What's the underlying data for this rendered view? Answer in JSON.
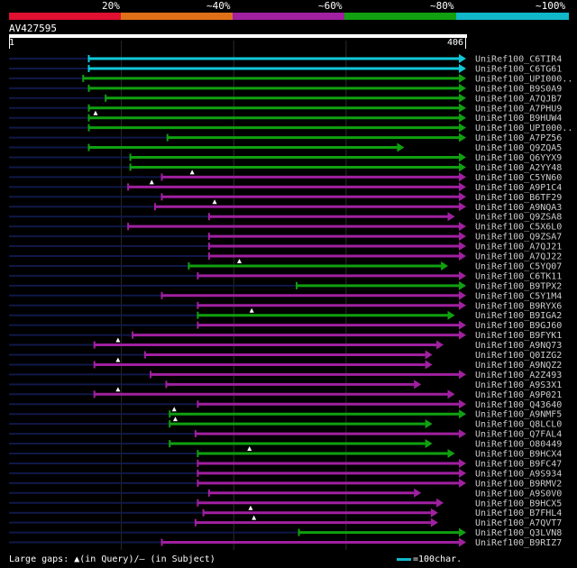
{
  "legend": {
    "segments": [
      {
        "label": "20%",
        "color": "#e01030"
      },
      {
        "label": "~40%",
        "color": "#e07018"
      },
      {
        "label": "~60%",
        "color": "#a020a0"
      },
      {
        "label": "~80%",
        "color": "#10a010"
      },
      {
        "label": "~100%",
        "color": "#10b8c8"
      }
    ]
  },
  "query": {
    "id": "AV427595",
    "start": "1",
    "end": "406"
  },
  "footer": {
    "large_gaps": "Large gaps: ▲(in Query)/– (in Subject)",
    "scale": "=100char."
  },
  "chart_data": {
    "type": "alignment",
    "query_length": 406,
    "identity_colors": {
      "cyan": "#10c8d8",
      "green": "#10a010",
      "magenta": "#a020a0"
    },
    "hits": [
      {
        "name": "UniRef100_C6TIR4",
        "start": 71,
        "end": 406,
        "color": "cyan",
        "query_gap": null
      },
      {
        "name": "UniRef100_C6TG61",
        "start": 71,
        "end": 406,
        "color": "cyan",
        "query_gap": null
      },
      {
        "name": "UniRef100_UPI000..",
        "start": 66,
        "end": 406,
        "color": "green",
        "query_gap": null
      },
      {
        "name": "UniRef100_B9S0A9",
        "start": 71,
        "end": 406,
        "color": "green",
        "query_gap": null
      },
      {
        "name": "UniRef100_A7QJB7",
        "start": 86,
        "end": 406,
        "color": "green",
        "query_gap": null
      },
      {
        "name": "UniRef100_A7PHU9",
        "start": 71,
        "end": 406,
        "color": "green",
        "query_gap": null
      },
      {
        "name": "UniRef100_B9HUW4",
        "start": 71,
        "end": 406,
        "color": "green",
        "query_gap": 77
      },
      {
        "name": "UniRef100_UPI000..",
        "start": 71,
        "end": 406,
        "color": "green",
        "query_gap": null
      },
      {
        "name": "UniRef100_A7PZ56",
        "start": 141,
        "end": 406,
        "color": "green",
        "query_gap": null
      },
      {
        "name": "UniRef100_Q9ZQA5",
        "start": 71,
        "end": 351,
        "color": "green",
        "query_gap": null
      },
      {
        "name": "UniRef100_Q6YYX9",
        "start": 108,
        "end": 406,
        "color": "green",
        "query_gap": null
      },
      {
        "name": "UniRef100_A2YY48",
        "start": 108,
        "end": 406,
        "color": "green",
        "query_gap": null
      },
      {
        "name": "UniRef100_C5YN60",
        "start": 136,
        "end": 406,
        "color": "magenta",
        "query_gap": 163
      },
      {
        "name": "UniRef100_A9P1C4",
        "start": 106,
        "end": 406,
        "color": "magenta",
        "query_gap": 127
      },
      {
        "name": "UniRef100_B6TF29",
        "start": 136,
        "end": 406,
        "color": "magenta",
        "query_gap": null
      },
      {
        "name": "UniRef100_A9NQA3",
        "start": 130,
        "end": 406,
        "color": "magenta",
        "query_gap": 183
      },
      {
        "name": "UniRef100_Q9ZSA8",
        "start": 178,
        "end": 396,
        "color": "magenta",
        "query_gap": null
      },
      {
        "name": "UniRef100_C5X6L0",
        "start": 106,
        "end": 406,
        "color": "magenta",
        "query_gap": null
      },
      {
        "name": "UniRef100_Q9ZSA7",
        "start": 178,
        "end": 406,
        "color": "magenta",
        "query_gap": null
      },
      {
        "name": "UniRef100_A7QJ21",
        "start": 178,
        "end": 406,
        "color": "magenta",
        "query_gap": null
      },
      {
        "name": "UniRef100_A7QJ22",
        "start": 178,
        "end": 406,
        "color": "magenta",
        "query_gap": null
      },
      {
        "name": "UniRef100_C5YQ07",
        "start": 160,
        "end": 390,
        "color": "green",
        "query_gap": 205
      },
      {
        "name": "UniRef100_C6TK11",
        "start": 168,
        "end": 406,
        "color": "magenta",
        "query_gap": null
      },
      {
        "name": "UniRef100_B9TPX2",
        "start": 256,
        "end": 406,
        "color": "green",
        "query_gap": null
      },
      {
        "name": "UniRef100_C5Y1M4",
        "start": 136,
        "end": 406,
        "color": "magenta",
        "query_gap": null
      },
      {
        "name": "UniRef100_B9RYX6",
        "start": 168,
        "end": 406,
        "color": "magenta",
        "query_gap": null
      },
      {
        "name": "UniRef100_B9IGA2",
        "start": 168,
        "end": 396,
        "color": "green",
        "query_gap": 216
      },
      {
        "name": "UniRef100_B9GJ60",
        "start": 168,
        "end": 406,
        "color": "magenta",
        "query_gap": null
      },
      {
        "name": "UniRef100_B9FYK1",
        "start": 110,
        "end": 406,
        "color": "magenta",
        "query_gap": null
      },
      {
        "name": "UniRef100_A9NQ73",
        "start": 76,
        "end": 386,
        "color": "magenta",
        "query_gap": 97
      },
      {
        "name": "UniRef100_Q0IZG2",
        "start": 121,
        "end": 376,
        "color": "magenta",
        "query_gap": null
      },
      {
        "name": "UniRef100_A9NQZ2",
        "start": 76,
        "end": 376,
        "color": "magenta",
        "query_gap": 97
      },
      {
        "name": "UniRef100_A2Z493",
        "start": 126,
        "end": 406,
        "color": "magenta",
        "query_gap": null
      },
      {
        "name": "UniRef100_A9S3X1",
        "start": 140,
        "end": 366,
        "color": "magenta",
        "query_gap": null
      },
      {
        "name": "UniRef100_A9P021",
        "start": 76,
        "end": 396,
        "color": "magenta",
        "query_gap": 97
      },
      {
        "name": "UniRef100_Q43640",
        "start": 168,
        "end": 406,
        "color": "magenta",
        "query_gap": null
      },
      {
        "name": "UniRef100_A9NMF5",
        "start": 143,
        "end": 406,
        "color": "green",
        "query_gap": 147
      },
      {
        "name": "UniRef100_Q8LCL0",
        "start": 143,
        "end": 376,
        "color": "green",
        "query_gap": 148
      },
      {
        "name": "UniRef100_Q7FAL4",
        "start": 166,
        "end": 406,
        "color": "magenta",
        "query_gap": null
      },
      {
        "name": "UniRef100_O80449",
        "start": 143,
        "end": 376,
        "color": "green",
        "query_gap": null
      },
      {
        "name": "UniRef100_B9HCX4",
        "start": 168,
        "end": 396,
        "color": "green",
        "query_gap": 214
      },
      {
        "name": "UniRef100_B9FC47",
        "start": 168,
        "end": 406,
        "color": "magenta",
        "query_gap": null
      },
      {
        "name": "UniRef100_A9S934",
        "start": 168,
        "end": 406,
        "color": "magenta",
        "query_gap": null
      },
      {
        "name": "UniRef100_B9RMV2",
        "start": 168,
        "end": 406,
        "color": "magenta",
        "query_gap": null
      },
      {
        "name": "UniRef100_A9S0V0",
        "start": 178,
        "end": 366,
        "color": "magenta",
        "query_gap": null
      },
      {
        "name": "UniRef100_B9HCX5",
        "start": 168,
        "end": 386,
        "color": "magenta",
        "query_gap": null
      },
      {
        "name": "UniRef100_B7FHL4",
        "start": 173,
        "end": 381,
        "color": "magenta",
        "query_gap": 215
      },
      {
        "name": "UniRef100_A7QVT7",
        "start": 166,
        "end": 381,
        "color": "magenta",
        "query_gap": 218
      },
      {
        "name": "UniRef100_Q3LVN8",
        "start": 258,
        "end": 406,
        "color": "green",
        "query_gap": null
      },
      {
        "name": "UniRef100_B9RIZ7",
        "start": 136,
        "end": 406,
        "color": "magenta",
        "query_gap": null
      }
    ]
  }
}
